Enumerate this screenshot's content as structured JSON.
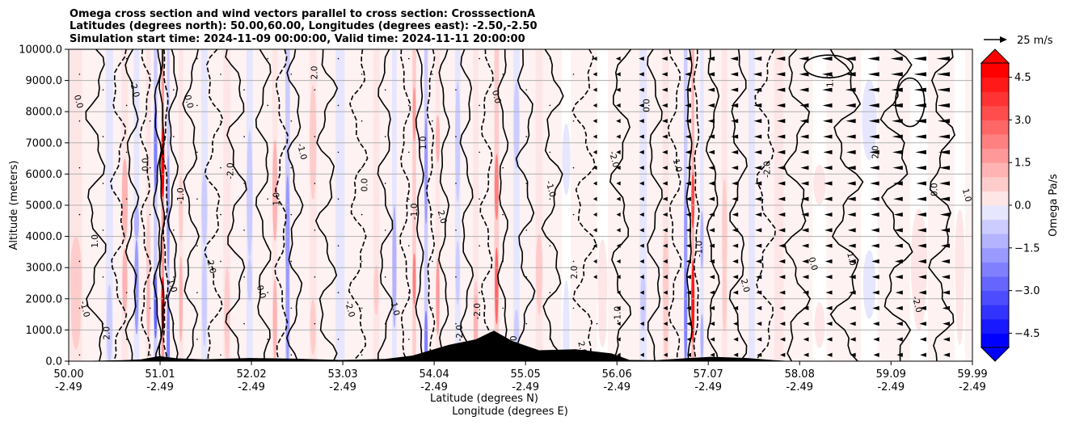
{
  "chart_data": {
    "type": "heatmap",
    "title_lines": [
      "Omega cross section and wind vectors parallel to cross section: CrosssectionA",
      "Latitudes (degrees north): 50.00,60.00, Longitudes (degrees east): -2.50,-2.50",
      "Simulation start time: 2024-11-09 00:00:00, Valid time: 2024-11-11 20:00:00"
    ],
    "xlabel_line1": "Latitude (degrees N)",
    "xlabel_line2": "Longitude (degrees E)",
    "ylabel": "Altitude (meters)",
    "xlim": [
      50.0,
      59.99
    ],
    "ylim": [
      0,
      10000
    ],
    "x_ticks": [
      {
        "lat": "50.00",
        "lon": "-2.49",
        "value": 50.0
      },
      {
        "lat": "51.01",
        "lon": "-2.49",
        "value": 51.01
      },
      {
        "lat": "52.02",
        "lon": "-2.49",
        "value": 52.02
      },
      {
        "lat": "53.03",
        "lon": "-2.49",
        "value": 53.03
      },
      {
        "lat": "54.04",
        "lon": "-2.49",
        "value": 54.04
      },
      {
        "lat": "55.05",
        "lon": "-2.49",
        "value": 55.05
      },
      {
        "lat": "56.06",
        "lon": "-2.49",
        "value": 56.06
      },
      {
        "lat": "57.07",
        "lon": "-2.49",
        "value": 57.07
      },
      {
        "lat": "58.08",
        "lon": "-2.49",
        "value": 58.08
      },
      {
        "lat": "59.09",
        "lon": "-2.49",
        "value": 59.09
      },
      {
        "lat": "59.99",
        "lon": "-2.49",
        "value": 59.99
      }
    ],
    "y_ticks": [
      "0.0",
      "1000.0",
      "2000.0",
      "3000.0",
      "4000.0",
      "5000.0",
      "6000.0",
      "7000.0",
      "8000.0",
      "9000.0",
      "10000.0"
    ],
    "grid": "horizontal",
    "colorbar": {
      "label": "Omega Pa/s",
      "ticks": [
        "4.5",
        "3.0",
        "1.5",
        "0.0",
        "−1.5",
        "−3.0",
        "−4.5"
      ],
      "range": [
        -5,
        5
      ],
      "cmap": "bwr"
    },
    "quiver_key": {
      "label": "25 m/s"
    },
    "contour_labels": [
      "0.0",
      "1.0",
      "-1.0",
      "2.0",
      "-2.0"
    ],
    "bands": [
      {
        "x": 50.08,
        "w": 0.14,
        "v": 0.9
      },
      {
        "x": 50.45,
        "w": 0.08,
        "v": -0.7
      },
      {
        "x": 50.62,
        "w": 0.07,
        "v": 1.3
      },
      {
        "x": 50.75,
        "w": 0.06,
        "v": -1.6
      },
      {
        "x": 50.88,
        "w": 0.05,
        "v": 1.1
      },
      {
        "x": 50.96,
        "w": 0.04,
        "v": -2.6
      },
      {
        "x": 51.04,
        "w": 0.03,
        "v": 4.8
      },
      {
        "x": 51.1,
        "w": 0.03,
        "v": -2.2
      },
      {
        "x": 51.24,
        "w": 0.05,
        "v": 1.2
      },
      {
        "x": 51.5,
        "w": 0.07,
        "v": -0.8
      },
      {
        "x": 51.75,
        "w": 0.08,
        "v": 0.7
      },
      {
        "x": 52.0,
        "w": 0.07,
        "v": -0.9
      },
      {
        "x": 52.28,
        "w": 0.06,
        "v": 1.4
      },
      {
        "x": 52.42,
        "w": 0.05,
        "v": -1.8
      },
      {
        "x": 52.7,
        "w": 0.08,
        "v": 1.0
      },
      {
        "x": 53.0,
        "w": 0.1,
        "v": -0.6
      },
      {
        "x": 53.4,
        "w": 0.07,
        "v": 0.7
      },
      {
        "x": 53.6,
        "w": 0.05,
        "v": -1.3
      },
      {
        "x": 53.82,
        "w": 0.04,
        "v": 2.0
      },
      {
        "x": 53.95,
        "w": 0.04,
        "v": -1.9
      },
      {
        "x": 54.08,
        "w": 0.05,
        "v": 1.6
      },
      {
        "x": 54.3,
        "w": 0.06,
        "v": -1.0
      },
      {
        "x": 54.5,
        "w": 0.06,
        "v": 1.2
      },
      {
        "x": 54.73,
        "w": 0.05,
        "v": 2.6
      },
      {
        "x": 54.95,
        "w": 0.07,
        "v": -0.8
      },
      {
        "x": 55.2,
        "w": 0.08,
        "v": 0.8
      },
      {
        "x": 55.5,
        "w": 0.1,
        "v": -0.5
      },
      {
        "x": 55.9,
        "w": 0.12,
        "v": 0.5
      },
      {
        "x": 56.35,
        "w": 0.08,
        "v": -0.7
      },
      {
        "x": 56.6,
        "w": 0.07,
        "v": 0.9
      },
      {
        "x": 56.82,
        "w": 0.04,
        "v": -2.0
      },
      {
        "x": 56.9,
        "w": 0.03,
        "v": 3.6
      },
      {
        "x": 57.0,
        "w": 0.04,
        "v": -1.4
      },
      {
        "x": 57.25,
        "w": 0.06,
        "v": 0.8
      },
      {
        "x": 57.55,
        "w": 0.07,
        "v": -0.6
      },
      {
        "x": 57.85,
        "w": 0.1,
        "v": 0.6
      },
      {
        "x": 58.3,
        "w": 0.15,
        "v": 0.4
      },
      {
        "x": 58.85,
        "w": 0.18,
        "v": -0.3
      },
      {
        "x": 59.4,
        "w": 0.2,
        "v": 0.35
      },
      {
        "x": 59.85,
        "w": 0.12,
        "v": 0.3
      }
    ],
    "terrain": [
      {
        "x": 50.0,
        "h": 0
      },
      {
        "x": 50.6,
        "h": 30
      },
      {
        "x": 50.8,
        "h": 60
      },
      {
        "x": 51.0,
        "h": 160
      },
      {
        "x": 51.2,
        "h": 90
      },
      {
        "x": 51.5,
        "h": 60
      },
      {
        "x": 52.0,
        "h": 100
      },
      {
        "x": 52.5,
        "h": 80
      },
      {
        "x": 53.0,
        "h": 40
      },
      {
        "x": 53.5,
        "h": 70
      },
      {
        "x": 53.8,
        "h": 180
      },
      {
        "x": 54.0,
        "h": 350
      },
      {
        "x": 54.2,
        "h": 520
      },
      {
        "x": 54.5,
        "h": 700
      },
      {
        "x": 54.7,
        "h": 980
      },
      {
        "x": 54.9,
        "h": 650
      },
      {
        "x": 55.2,
        "h": 350
      },
      {
        "x": 55.6,
        "h": 380
      },
      {
        "x": 56.0,
        "h": 250
      },
      {
        "x": 56.2,
        "h": 40
      },
      {
        "x": 56.5,
        "h": 30
      },
      {
        "x": 56.8,
        "h": 90
      },
      {
        "x": 57.1,
        "h": 140
      },
      {
        "x": 57.5,
        "h": 100
      },
      {
        "x": 57.8,
        "h": 30
      },
      {
        "x": 58.0,
        "h": 0
      },
      {
        "x": 59.99,
        "h": 0
      }
    ],
    "contour_lines": [
      {
        "x": 50.3,
        "amp": 0.08,
        "dash": false
      },
      {
        "x": 50.55,
        "amp": 0.06,
        "dash": true
      },
      {
        "x": 50.7,
        "amp": 0.05,
        "dash": false
      },
      {
        "x": 50.85,
        "amp": 0.04,
        "dash": true
      },
      {
        "x": 50.98,
        "amp": 0.03,
        "dash": false
      },
      {
        "x": 51.03,
        "amp": 0.02,
        "dash": false
      },
      {
        "x": 51.07,
        "amp": 0.02,
        "dash": true
      },
      {
        "x": 51.15,
        "amp": 0.04,
        "dash": false
      },
      {
        "x": 51.35,
        "amp": 0.06,
        "dash": false
      },
      {
        "x": 51.6,
        "amp": 0.07,
        "dash": true
      },
      {
        "x": 51.85,
        "amp": 0.08,
        "dash": false
      },
      {
        "x": 52.15,
        "amp": 0.06,
        "dash": false
      },
      {
        "x": 52.35,
        "amp": 0.05,
        "dash": true
      },
      {
        "x": 52.5,
        "amp": 0.06,
        "dash": false
      },
      {
        "x": 52.85,
        "amp": 0.08,
        "dash": false
      },
      {
        "x": 53.2,
        "amp": 0.07,
        "dash": true
      },
      {
        "x": 53.5,
        "amp": 0.06,
        "dash": false
      },
      {
        "x": 53.72,
        "amp": 0.04,
        "dash": true
      },
      {
        "x": 53.88,
        "amp": 0.03,
        "dash": false
      },
      {
        "x": 54.0,
        "amp": 0.03,
        "dash": true
      },
      {
        "x": 54.15,
        "amp": 0.04,
        "dash": false
      },
      {
        "x": 54.4,
        "amp": 0.05,
        "dash": false
      },
      {
        "x": 54.62,
        "amp": 0.05,
        "dash": true
      },
      {
        "x": 54.8,
        "amp": 0.04,
        "dash": false
      },
      {
        "x": 55.05,
        "amp": 0.07,
        "dash": false
      },
      {
        "x": 55.35,
        "amp": 0.08,
        "dash": false
      },
      {
        "x": 55.7,
        "amp": 0.09,
        "dash": true
      },
      {
        "x": 56.1,
        "amp": 0.08,
        "dash": false
      },
      {
        "x": 56.48,
        "amp": 0.06,
        "dash": false
      },
      {
        "x": 56.7,
        "amp": 0.05,
        "dash": true
      },
      {
        "x": 56.86,
        "amp": 0.02,
        "dash": false
      },
      {
        "x": 56.94,
        "amp": 0.02,
        "dash": true
      },
      {
        "x": 57.12,
        "amp": 0.05,
        "dash": false
      },
      {
        "x": 57.4,
        "amp": 0.07,
        "dash": false
      },
      {
        "x": 57.7,
        "amp": 0.08,
        "dash": true
      },
      {
        "x": 58.05,
        "amp": 0.1,
        "dash": false
      },
      {
        "x": 58.6,
        "amp": 0.12,
        "dash": false
      },
      {
        "x": 59.15,
        "amp": 0.12,
        "dash": false
      },
      {
        "x": 59.65,
        "amp": 0.1,
        "dash": false
      }
    ]
  }
}
